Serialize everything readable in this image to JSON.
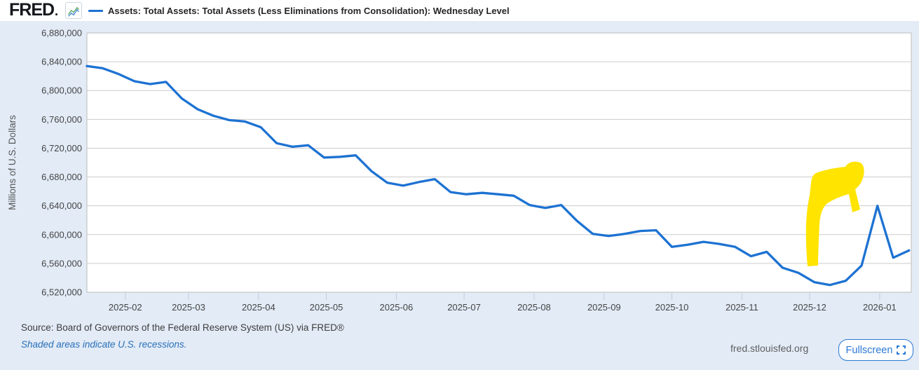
{
  "header": {
    "logo_text": "FRED",
    "legend_label": "Assets: Total Assets: Total Assets (Less Eliminations from Consolidation): Wednesday Level"
  },
  "chart_data": {
    "type": "line",
    "ylabel": "Millions of U.S. Dollars",
    "ylim": [
      6520000,
      6880000
    ],
    "y_tick_step": 40000,
    "x_domain": [
      "2025-01-15",
      "2026-01-15"
    ],
    "grid": "horizontal",
    "colors": {
      "line": "#1d72d2",
      "gridline": "#cccccc",
      "plot_border": "#bcbcbc",
      "plot_background": "#ffffff",
      "page_background": "#e2ebf6"
    },
    "x_ticks": [
      {
        "label": "2025-02",
        "date": "2025-02-01"
      },
      {
        "label": "2025-03",
        "date": "2025-03-01"
      },
      {
        "label": "2025-04",
        "date": "2025-04-01"
      },
      {
        "label": "2025-05",
        "date": "2025-05-01"
      },
      {
        "label": "2025-06",
        "date": "2025-06-01"
      },
      {
        "label": "2025-07",
        "date": "2025-07-01"
      },
      {
        "label": "2025-08",
        "date": "2025-08-01"
      },
      {
        "label": "2025-09",
        "date": "2025-09-01"
      },
      {
        "label": "2025-10",
        "date": "2025-10-01"
      },
      {
        "label": "2025-11",
        "date": "2025-11-01"
      },
      {
        "label": "2025-12",
        "date": "2025-12-01"
      },
      {
        "label": "2026-01",
        "date": "2026-01-01"
      }
    ],
    "series": [
      {
        "name": "Assets: Total Assets: Total Assets (Less Eliminations from Consolidation): Wednesday Level",
        "dates": [
          "2025-01-15",
          "2025-01-22",
          "2025-01-29",
          "2025-02-05",
          "2025-02-12",
          "2025-02-19",
          "2025-02-26",
          "2025-03-05",
          "2025-03-12",
          "2025-03-19",
          "2025-03-26",
          "2025-04-02",
          "2025-04-09",
          "2025-04-16",
          "2025-04-23",
          "2025-04-30",
          "2025-05-07",
          "2025-05-14",
          "2025-05-21",
          "2025-05-28",
          "2025-06-04",
          "2025-06-11",
          "2025-06-18",
          "2025-06-25",
          "2025-07-02",
          "2025-07-09",
          "2025-07-16",
          "2025-07-23",
          "2025-07-30",
          "2025-08-06",
          "2025-08-13",
          "2025-08-20",
          "2025-08-27",
          "2025-09-03",
          "2025-09-10",
          "2025-09-17",
          "2025-09-24",
          "2025-10-01",
          "2025-10-08",
          "2025-10-15",
          "2025-10-22",
          "2025-10-29",
          "2025-11-05",
          "2025-11-12",
          "2025-11-19",
          "2025-11-26",
          "2025-12-03",
          "2025-12-10",
          "2025-12-17",
          "2025-12-24",
          "2025-12-31",
          "2026-01-07",
          "2026-01-14"
        ],
        "values": [
          6834000,
          6831000,
          6823000,
          6813000,
          6809000,
          6812000,
          6789000,
          6774000,
          6765000,
          6759000,
          6757000,
          6749000,
          6727000,
          6722000,
          6724000,
          6707000,
          6708000,
          6710000,
          6688000,
          6672000,
          6668000,
          6673000,
          6677000,
          6659000,
          6656000,
          6658000,
          6656000,
          6654000,
          6641000,
          6637000,
          6641000,
          6619000,
          6601000,
          6598000,
          6601000,
          6605000,
          6606000,
          6583000,
          6586000,
          6590000,
          6587000,
          6583000,
          6570000,
          6576000,
          6554000,
          6547000,
          6534000,
          6530000,
          6536000,
          6557000,
          6640000,
          6568000,
          6578000
        ]
      }
    ],
    "annotation": {
      "shape": "hand-drawn-arrow",
      "direction": "up-right",
      "color": "#ffe400",
      "note": "thick yellow marker arrow highlighting the year-end 2025 spike"
    }
  },
  "footer": {
    "source_text": "Source: Board of Governors of the Federal Reserve System (US) via FRED®",
    "recession_note": "Shaded areas indicate U.S. recessions.",
    "site_url": "fred.stlouisfed.org",
    "fullscreen_label": "Fullscreen"
  }
}
